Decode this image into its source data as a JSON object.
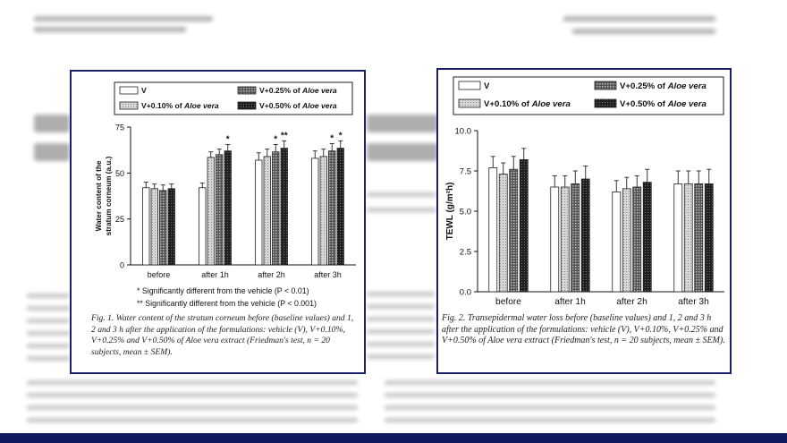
{
  "figures": [
    {
      "caption": "Fig. 1.  Water content of the stratum corneum before (baseline values) and 1, 2 and 3 h after the application of the formulations: vehicle (V), V+0.10%, V+0.25% and V+0.50% of Aloe vera extract (Friedman's test, n = 20 subjects, mean ± SEM).",
      "notes": [
        "* Significantly different from the vehicle (P < 0.01)",
        "** Significantly different from the vehicle (P < 0.001)"
      ]
    },
    {
      "caption": "Fig. 2.  Transepidermal water loss before (baseline values) and 1, 2 and 3 h after the application of the formulations: vehicle (V), V+0.10%, V+0.25% and V+0.50% of Aloe vera extract (Friedman's test, n = 20 subjects, mean ± SEM)."
    }
  ],
  "chart_data": [
    {
      "type": "bar",
      "categories": [
        "before",
        "after 1h",
        "after 2h",
        "after 3h"
      ],
      "ylabel": "Water content of the stratum corneum (a.u.)",
      "xlabel": "",
      "ylim": [
        0,
        75
      ],
      "yticks": [
        "0",
        "25",
        "50",
        "75"
      ],
      "legend_placement": "top",
      "series": [
        {
          "name": "V",
          "values": [
            42,
            42,
            57,
            58
          ],
          "errors": [
            3,
            2.5,
            4,
            4
          ],
          "fill": "white"
        },
        {
          "name": "V+0.10% of Aloe vera",
          "values": [
            41.5,
            58.5,
            59,
            59
          ],
          "errors": [
            2.5,
            3,
            4,
            4
          ],
          "fill": "lightgray"
        },
        {
          "name": "V+0.25% of Aloe vera",
          "values": [
            40.5,
            60,
            61.5,
            62
          ],
          "errors": [
            3,
            3,
            4,
            4
          ],
          "fill": "darkgray"
        },
        {
          "name": "V+0.50% of Aloe vera",
          "values": [
            41.5,
            62,
            63.5,
            63.5
          ],
          "errors": [
            2.5,
            3.5,
            4,
            4
          ],
          "fill": "black"
        }
      ],
      "significance": [
        {
          "category": 1,
          "series": 3,
          "label": "*"
        },
        {
          "category": 2,
          "series": 2,
          "label": "*"
        },
        {
          "category": 2,
          "series": 3,
          "label": "**"
        },
        {
          "category": 3,
          "series": 2,
          "label": "*"
        },
        {
          "category": 3,
          "series": 3,
          "label": "*"
        }
      ]
    },
    {
      "type": "bar",
      "categories": [
        "before",
        "after 1h",
        "after 2h",
        "after 3h"
      ],
      "ylabel": "TEWL (g/m²h)",
      "xlabel": "",
      "ylim": [
        0,
        10
      ],
      "yticks": [
        "0.0",
        "2.5",
        "5.0",
        "7.5",
        "10.0"
      ],
      "legend_placement": "top",
      "series": [
        {
          "name": "V",
          "values": [
            7.7,
            6.5,
            6.2,
            6.7
          ],
          "errors": [
            0.7,
            0.7,
            0.7,
            0.8
          ],
          "fill": "white"
        },
        {
          "name": "V+0.10% of Aloe vera",
          "values": [
            7.3,
            6.5,
            6.4,
            6.7
          ],
          "errors": [
            0.7,
            0.7,
            0.7,
            0.8
          ],
          "fill": "lightgray"
        },
        {
          "name": "V+0.25% of Aloe vera",
          "values": [
            7.6,
            6.7,
            6.5,
            6.7
          ],
          "errors": [
            0.8,
            0.8,
            0.7,
            0.8
          ],
          "fill": "darkgray"
        },
        {
          "name": "V+0.50% of Aloe vera",
          "values": [
            8.2,
            7.0,
            6.8,
            6.7
          ],
          "errors": [
            0.7,
            0.8,
            0.8,
            0.9
          ],
          "fill": "black"
        }
      ]
    }
  ],
  "colors": {
    "frame": "#18206a",
    "bottom_bar": "#101a5e"
  }
}
